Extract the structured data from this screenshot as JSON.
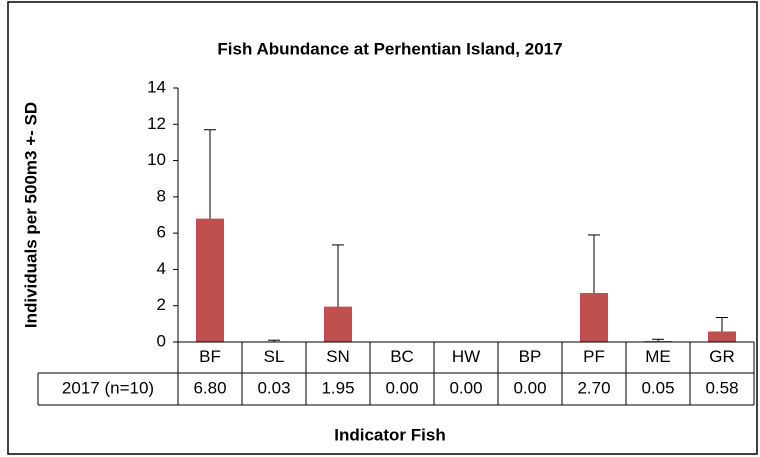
{
  "chart_data": {
    "type": "bar",
    "title": "Fish Abundance at Perhentian Island, 2017",
    "y_label": "Individuals per  500m3 +- SD",
    "x_label": "Indicator Fish",
    "categories": [
      "BF",
      "SL",
      "SN",
      "BC",
      "HW",
      "BP",
      "PF",
      "ME",
      "GR"
    ],
    "series": [
      {
        "name": "2017 (n=10)",
        "color": "#c0504d",
        "values": [
          6.8,
          0.03,
          1.95,
          0,
          0,
          0,
          2.7,
          0.05,
          0.58
        ],
        "value_labels": [
          "6.80",
          "0.03",
          "1.95",
          "0.00",
          "0.00",
          "0.00",
          "2.70",
          "0.05",
          "0.58"
        ],
        "errors": [
          4.9,
          0.07,
          3.4,
          0,
          0,
          0,
          3.2,
          0.1,
          0.77
        ]
      }
    ],
    "ylim": [
      0,
      14
    ],
    "yticks": [
      0,
      2,
      4,
      6,
      8,
      10,
      12,
      14
    ]
  }
}
